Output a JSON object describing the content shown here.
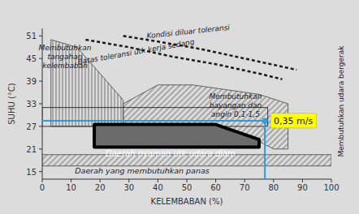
{
  "chart_data": {
    "type": "bioclimatic",
    "x_label": "KELEMBABAN (%)",
    "y_label": "SUHU (°C)",
    "xlim": [
      0,
      100
    ],
    "ylim": [
      13,
      53
    ],
    "xticks": [
      0,
      10,
      20,
      30,
      40,
      50,
      60,
      70,
      80,
      90,
      100
    ],
    "yticks": [
      15,
      21,
      27,
      33,
      39,
      45,
      51
    ],
    "regions": [
      {
        "label": "Membutuhkan\ntangahan\nkelembaban",
        "style": "vertical-hatch",
        "x": [
          3,
          3,
          12,
          28,
          28
        ],
        "y": [
          27,
          50,
          48,
          34,
          27
        ]
      },
      {
        "label": "Membutuhkan\nbayangan dan\nangin 0,1-1,5",
        "style": "diagonal-hatch",
        "x": [
          28,
          40,
          52,
          75,
          85,
          85,
          80,
          75,
          60,
          28
        ],
        "y": [
          33,
          38,
          38,
          35.5,
          33,
          21,
          21,
          23,
          27.5,
          27.5
        ]
      },
      {
        "style": "outline",
        "x": [
          0,
          78,
          78,
          0
        ],
        "y": [
          27,
          27,
          32,
          32
        ]
      },
      {
        "label": "Daerah nyaman utk udara diam",
        "style": "solid",
        "x": [
          18,
          60,
          75,
          75,
          18
        ],
        "y": [
          27.5,
          27.5,
          23.5,
          21.5,
          21.5
        ]
      },
      {
        "label": "Daerah yang membutuhkan panas",
        "style": "diagonal-hatch",
        "x": [
          0,
          100,
          100,
          0
        ],
        "y": [
          16.5,
          16.5,
          19.5,
          19.5
        ]
      }
    ],
    "series": [
      {
        "name": "Kondisi diluar toleransi",
        "line_style": "dashed",
        "color": "#1a1a1a",
        "x": [
          28,
          40,
          55,
          70,
          88
        ],
        "values": [
          51,
          49.5,
          47.5,
          45,
          42
        ]
      },
      {
        "name": "Batas toleransi utk kerja sedang",
        "line_style": "dashed",
        "color": "#1a1a1a",
        "x": [
          15,
          30,
          45,
          60,
          75,
          83
        ],
        "values": [
          50,
          48,
          45.5,
          43.5,
          41,
          39.5
        ]
      }
    ],
    "side_label": "Membutuhkan udara bergerak",
    "annotation": {
      "x": 77,
      "y": 28.5,
      "label": "0,35 m/s",
      "color": "#2e9be0"
    }
  }
}
